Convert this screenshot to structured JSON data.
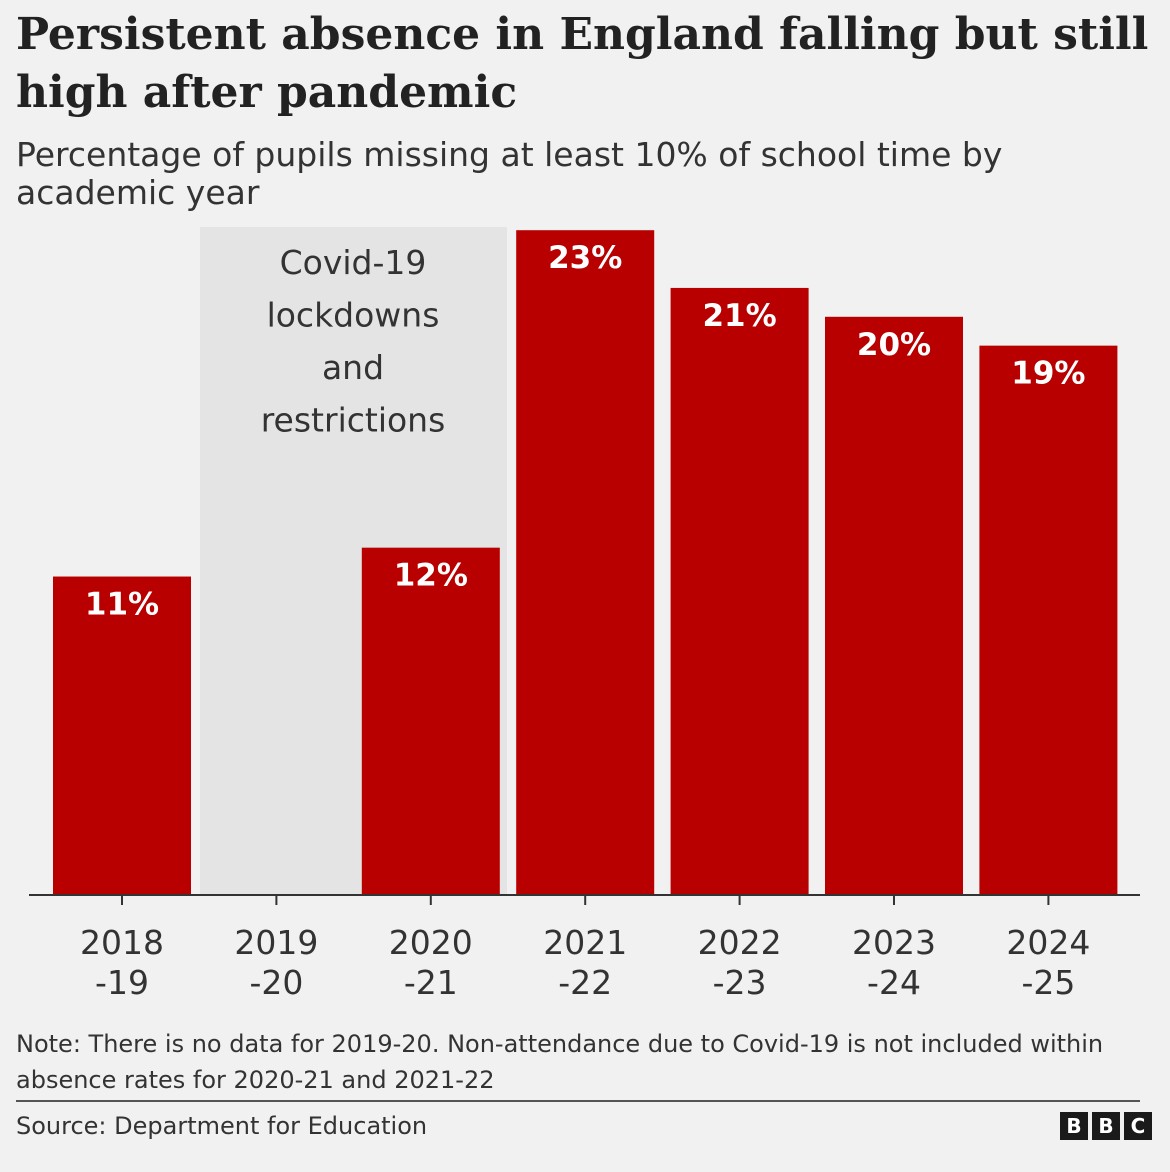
{
  "header": {
    "title": "Persistent absence in England falling but still high after pandemic",
    "subtitle": "Percentage of pupils missing at least 10% of school time by academic year"
  },
  "chart_data": {
    "type": "bar",
    "title": "Persistent absence in England falling but still high after pandemic",
    "subtitle": "Percentage of pupils missing at least 10% of school time by academic year",
    "categories": [
      {
        "line1": "2018",
        "line2": "-19"
      },
      {
        "line1": "2019",
        "line2": "-20"
      },
      {
        "line1": "2020",
        "line2": "-21"
      },
      {
        "line1": "2021",
        "line2": "-22"
      },
      {
        "line1": "2022",
        "line2": "-23"
      },
      {
        "line1": "2023",
        "line2": "-24"
      },
      {
        "line1": "2024",
        "line2": "-25"
      }
    ],
    "values": [
      11,
      null,
      12,
      23,
      21,
      20,
      19
    ],
    "value_labels": [
      "11%",
      "",
      "12%",
      "23%",
      "21%",
      "20%",
      "19%"
    ],
    "ylim": [
      0,
      23.7
    ],
    "xlabel": "",
    "ylabel": "",
    "grid": false,
    "bar_color": "#b80000",
    "annotation": {
      "category_index": 1,
      "lines": [
        "Covid-19",
        "lockdowns",
        "and",
        "restrictions"
      ],
      "fill": "#e4e4e4"
    }
  },
  "footer": {
    "note": "Note: There is no data for 2019-20. Non-attendance due to Covid-19 is not included within absence rates for 2020-21 and 2021-22",
    "source": "Source: Department for Education",
    "logo": [
      "B",
      "B",
      "C"
    ]
  },
  "colors": {
    "background": "#f1f1f1",
    "bar": "#b80000",
    "shade": "#e4e4e4"
  }
}
